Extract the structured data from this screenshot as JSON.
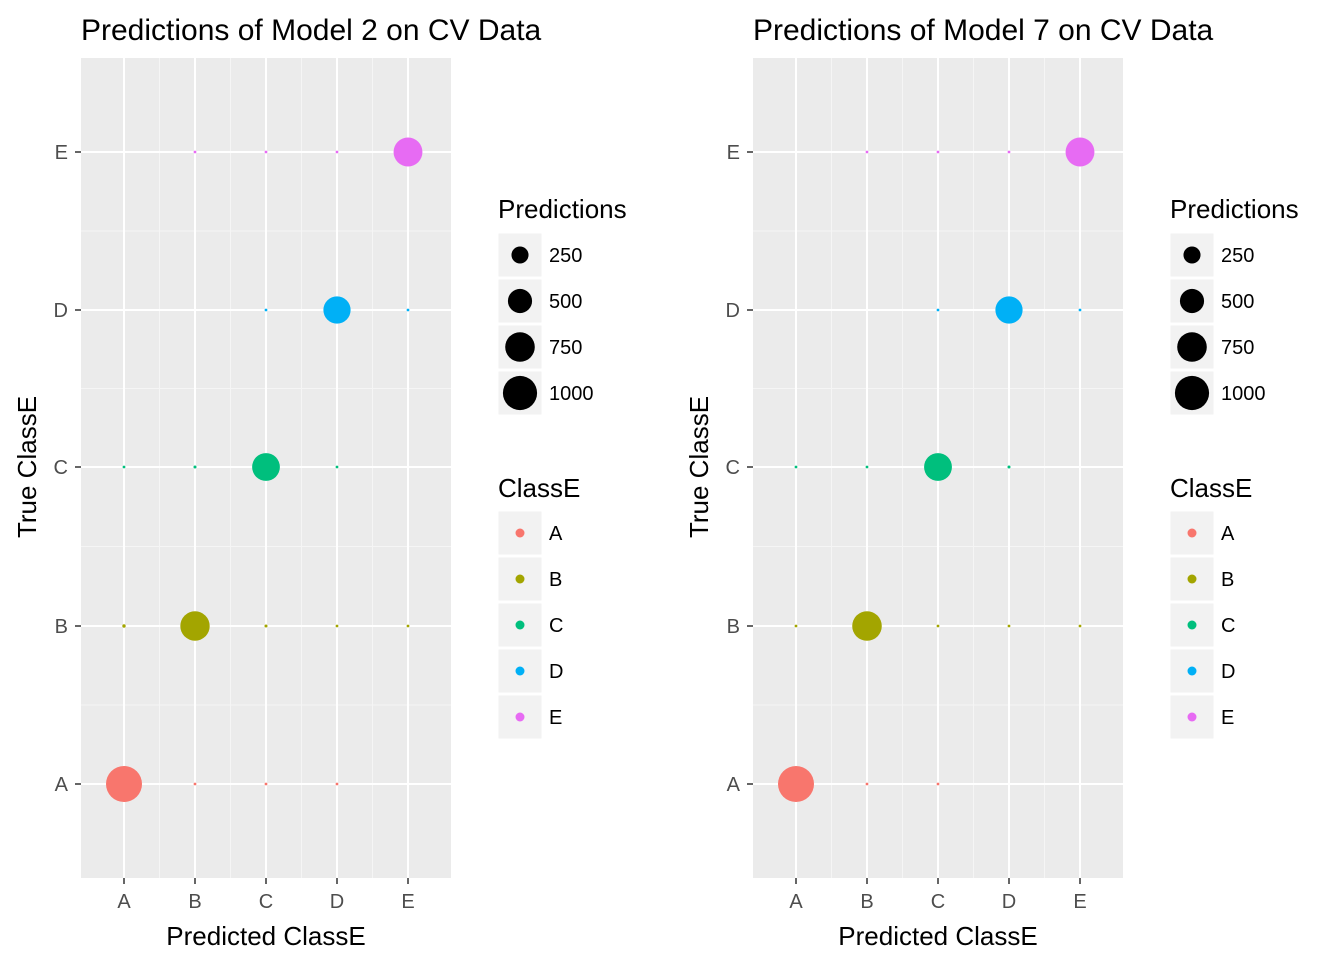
{
  "chart_data": [
    {
      "type": "scatter",
      "title": "Predictions of Model 2 on CV Data",
      "xlabel": "Predicted ClassE",
      "ylabel": "True ClassE",
      "x_categories": [
        "A",
        "B",
        "C",
        "D",
        "E"
      ],
      "y_categories": [
        "A",
        "B",
        "C",
        "D",
        "E"
      ],
      "grid": true,
      "legend_position": "right",
      "size_legend": {
        "title": "Predictions",
        "breaks": [
          250,
          500,
          750,
          1000
        ]
      },
      "color_legend": {
        "title": "ClassE",
        "entries": [
          "A",
          "B",
          "C",
          "D",
          "E"
        ]
      },
      "colors": {
        "A": "#F8766D",
        "B": "#A3A500",
        "C": "#00BF7D",
        "D": "#00B0F6",
        "E": "#E76BF3"
      },
      "points": [
        {
          "pred": "A",
          "true": "A",
          "count": 1110
        },
        {
          "pred": "B",
          "true": "A",
          "count": 4
        },
        {
          "pred": "C",
          "true": "A",
          "count": 3
        },
        {
          "pred": "D",
          "true": "A",
          "count": 1
        },
        {
          "pred": "A",
          "true": "B",
          "count": 10
        },
        {
          "pred": "B",
          "true": "B",
          "count": 740
        },
        {
          "pred": "C",
          "true": "B",
          "count": 8
        },
        {
          "pred": "D",
          "true": "B",
          "count": 5
        },
        {
          "pred": "E",
          "true": "B",
          "count": 1
        },
        {
          "pred": "A",
          "true": "C",
          "count": 1
        },
        {
          "pred": "B",
          "true": "C",
          "count": 8
        },
        {
          "pred": "C",
          "true": "C",
          "count": 660
        },
        {
          "pred": "D",
          "true": "C",
          "count": 6
        },
        {
          "pred": "C",
          "true": "D",
          "count": 5
        },
        {
          "pred": "D",
          "true": "D",
          "count": 635
        },
        {
          "pred": "E",
          "true": "D",
          "count": 2
        },
        {
          "pred": "B",
          "true": "E",
          "count": 6
        },
        {
          "pred": "C",
          "true": "E",
          "count": 3
        },
        {
          "pred": "D",
          "true": "E",
          "count": 3
        },
        {
          "pred": "E",
          "true": "E",
          "count": 715
        }
      ]
    },
    {
      "type": "scatter",
      "title": "Predictions of Model 7 on CV Data",
      "xlabel": "Predicted ClassE",
      "ylabel": "True ClassE",
      "x_categories": [
        "A",
        "B",
        "C",
        "D",
        "E"
      ],
      "y_categories": [
        "A",
        "B",
        "C",
        "D",
        "E"
      ],
      "grid": true,
      "legend_position": "right",
      "size_legend": {
        "title": "Predictions",
        "breaks": [
          250,
          500,
          750,
          1000
        ]
      },
      "color_legend": {
        "title": "ClassE",
        "entries": [
          "A",
          "B",
          "C",
          "D",
          "E"
        ]
      },
      "colors": {
        "A": "#F8766D",
        "B": "#A3A500",
        "C": "#00BF7D",
        "D": "#00B0F6",
        "E": "#E76BF3"
      },
      "points": [
        {
          "pred": "A",
          "true": "A",
          "count": 1110
        },
        {
          "pred": "B",
          "true": "A",
          "count": 3
        },
        {
          "pred": "C",
          "true": "A",
          "count": 3
        },
        {
          "pred": "A",
          "true": "B",
          "count": 5
        },
        {
          "pred": "B",
          "true": "B",
          "count": 750
        },
        {
          "pred": "C",
          "true": "B",
          "count": 4
        },
        {
          "pred": "D",
          "true": "B",
          "count": 1
        },
        {
          "pred": "E",
          "true": "B",
          "count": 1
        },
        {
          "pred": "A",
          "true": "C",
          "count": 1
        },
        {
          "pred": "B",
          "true": "C",
          "count": 5
        },
        {
          "pred": "C",
          "true": "C",
          "count": 665
        },
        {
          "pred": "D",
          "true": "C",
          "count": 8
        },
        {
          "pred": "C",
          "true": "D",
          "count": 4
        },
        {
          "pred": "D",
          "true": "D",
          "count": 635
        },
        {
          "pred": "E",
          "true": "D",
          "count": 2
        },
        {
          "pred": "B",
          "true": "E",
          "count": 6
        },
        {
          "pred": "C",
          "true": "E",
          "count": 3
        },
        {
          "pred": "D",
          "true": "E",
          "count": 3
        },
        {
          "pred": "E",
          "true": "E",
          "count": 715
        }
      ]
    }
  ]
}
